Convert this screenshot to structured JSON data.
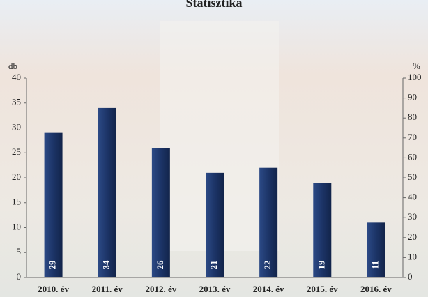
{
  "chart_data": {
    "type": "bar",
    "title": "Statisztika",
    "categories": [
      "2010. év",
      "2011. év",
      "2012. év",
      "2013. év",
      "2014. év",
      "2015. év",
      "2016. év"
    ],
    "values": [
      29,
      34,
      26,
      21,
      22,
      19,
      11
    ],
    "color": "#1c3467",
    "ylabel": "db",
    "y2label": "%",
    "ylim": [
      0,
      40
    ],
    "yticks": [
      0,
      5,
      10,
      15,
      20,
      25,
      30,
      35,
      40
    ],
    "y2lim": [
      0,
      100
    ],
    "y2ticks": [
      0,
      10,
      20,
      30,
      40,
      50,
      60,
      70,
      80,
      90,
      100
    ],
    "grid": false
  }
}
